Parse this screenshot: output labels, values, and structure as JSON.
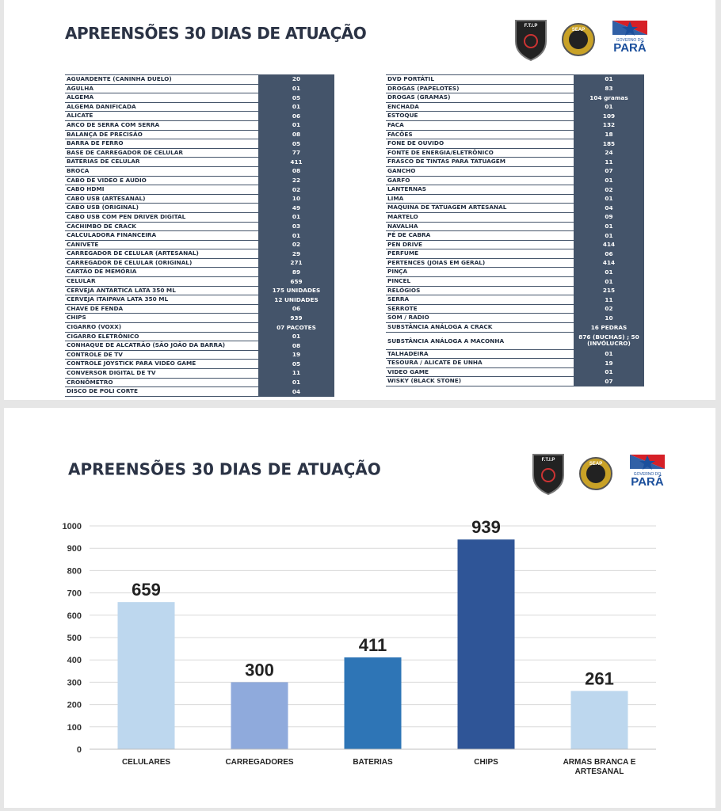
{
  "table_slide": {
    "title": "APREENSÕES  30 DIAS DE ATUAÇÃO",
    "left": {
      "rows": [
        [
          "AGUARDENTE (CANINHA DUELO)",
          "20"
        ],
        [
          "AGULHA",
          "01"
        ],
        [
          "ALGEMA",
          "05"
        ],
        [
          "ALGEMA DANIFICADA",
          "01"
        ],
        [
          "ALICATE",
          "06"
        ],
        [
          "ARCO DE SERRA COM SERRA",
          "01"
        ],
        [
          "BALANÇA DE PRECISÃO",
          "08"
        ],
        [
          "BARRA DE FERRO",
          "05"
        ],
        [
          "BASE DE CARREGADOR DE CELULAR",
          "77"
        ],
        [
          "BATERIAS DE CELULAR",
          "411"
        ],
        [
          "BROCA",
          "08"
        ],
        [
          "CABO DE VIDEO E AUDIO",
          "22"
        ],
        [
          "CABO HDMI",
          "02"
        ],
        [
          "CABO USB (ARTESANAL)",
          "10"
        ],
        [
          "CABO USB (ORIGINAL)",
          "49"
        ],
        [
          "CABO USB COM PEN DRIVER DIGITAL",
          "01"
        ],
        [
          "CACHIMBO DE CRACK",
          "03"
        ],
        [
          "CALCULADORA FINANCEIRA",
          "01"
        ],
        [
          "CANIVETE",
          "02"
        ],
        [
          "CARREGADOR DE CELULAR (ARTESANAL)",
          "29"
        ],
        [
          "CARREGADOR DE CELULAR (ORIGINAL)",
          "271"
        ],
        [
          "CARTÃO DE MEMÓRIA",
          "89"
        ],
        [
          "CELULAR",
          "659"
        ],
        [
          "CERVEJA ANTARTICA LATA 350 ML",
          "175 UNIDADES"
        ],
        [
          "CERVEJA ITAIPAVA LATA 350 ML",
          "12 UNIDADES"
        ],
        [
          "CHAVE DE FENDA",
          "06"
        ],
        [
          "CHIPS",
          "939"
        ],
        [
          "CIGARRO (VOXX)",
          "07 PACOTES"
        ],
        [
          "CIGARRO ELETRÔNICO",
          "01"
        ],
        [
          "CONHAQUE DE ALCATRÃO (SÃO JOÃO DA BARRA)",
          "08"
        ],
        [
          "CONTROLE DE TV",
          "19"
        ],
        [
          "CONTROLE JOYSTICK PARA VIDEO GAME",
          "05"
        ],
        [
          "CONVERSOR DIGITAL DE TV",
          "11"
        ],
        [
          "CRONÔMETRO",
          "01"
        ],
        [
          "DISCO DE POLI CORTE",
          "04"
        ]
      ]
    },
    "right": {
      "rows": [
        [
          "DVD PORTÁTIL",
          "01"
        ],
        [
          "DROGAS (PAPELOTES)",
          "83"
        ],
        [
          "DROGAS (GRAMAS)",
          "104 gramas"
        ],
        [
          "ENCHADA",
          "01"
        ],
        [
          "ESTOQUE",
          "109"
        ],
        [
          "FACA",
          "132"
        ],
        [
          "FACÕES",
          "18"
        ],
        [
          "FONE DE OUVIDO",
          "185"
        ],
        [
          "FONTE DE ENERGIA/ELETRÔNICO",
          "24"
        ],
        [
          "FRASCO DE TINTAS PARA TATUAGEM",
          "11"
        ],
        [
          "GANCHO",
          "07"
        ],
        [
          "GARFO",
          "01"
        ],
        [
          "LANTERNAS",
          "02"
        ],
        [
          "LIMA",
          "01"
        ],
        [
          "MAQUINA DE TATUAGEM ARTESANAL",
          "04"
        ],
        [
          "MARTELO",
          "09"
        ],
        [
          "NAVALHA",
          "01"
        ],
        [
          "PÉ DE CABRA",
          "01"
        ],
        [
          "PEN DRIVE",
          "414"
        ],
        [
          "PERFUME",
          "06"
        ],
        [
          "PERTENCES (JOIAS EM GERAL)",
          "414"
        ],
        [
          "PINÇA",
          "01"
        ],
        [
          "PINCEL",
          "01"
        ],
        [
          "RELÓGIOS",
          "215"
        ],
        [
          "SERRA",
          "11"
        ],
        [
          "SERROTE",
          "02"
        ],
        [
          "SOM / RADIO",
          "10"
        ],
        [
          "SUBSTÂNCIA ANÁLOGA A CRACK",
          "16 PEDRAS"
        ],
        [
          "SUBSTÂNCIA ANÁLOGA A MACONHA",
          "876 (BUCHAS) ; 50 (INVÓLUCRO)"
        ],
        [
          "TALHADEIRA",
          "01"
        ],
        [
          "TESOURA / ALICATE DE UNHA",
          "19"
        ],
        [
          "VIDEO GAME",
          "01"
        ],
        [
          "WISKY (BLACK STONE)",
          "07"
        ]
      ]
    }
  },
  "logos": {
    "ftip": "F.T.I.P",
    "seap": "SEAP",
    "gov": "GOVERNO DO",
    "para": "PARÁ"
  },
  "chart_data": {
    "type": "bar",
    "title": "APREENSÕES  30 DIAS DE ATUAÇÃO",
    "categories": [
      "CELULARES",
      "CARREGADORES",
      "BATERIAS",
      "CHIPS",
      "ARMAS BRANCA E ARTESANAL"
    ],
    "values": [
      659,
      300,
      411,
      939,
      261
    ],
    "colors": [
      "#bdd7ee",
      "#8faadc",
      "#2e75b6",
      "#2f5597",
      "#bdd7ee"
    ],
    "ylim": [
      0,
      1000
    ],
    "yticks": [
      0,
      100,
      200,
      300,
      400,
      500,
      600,
      700,
      800,
      900,
      1000
    ],
    "grid": true
  }
}
